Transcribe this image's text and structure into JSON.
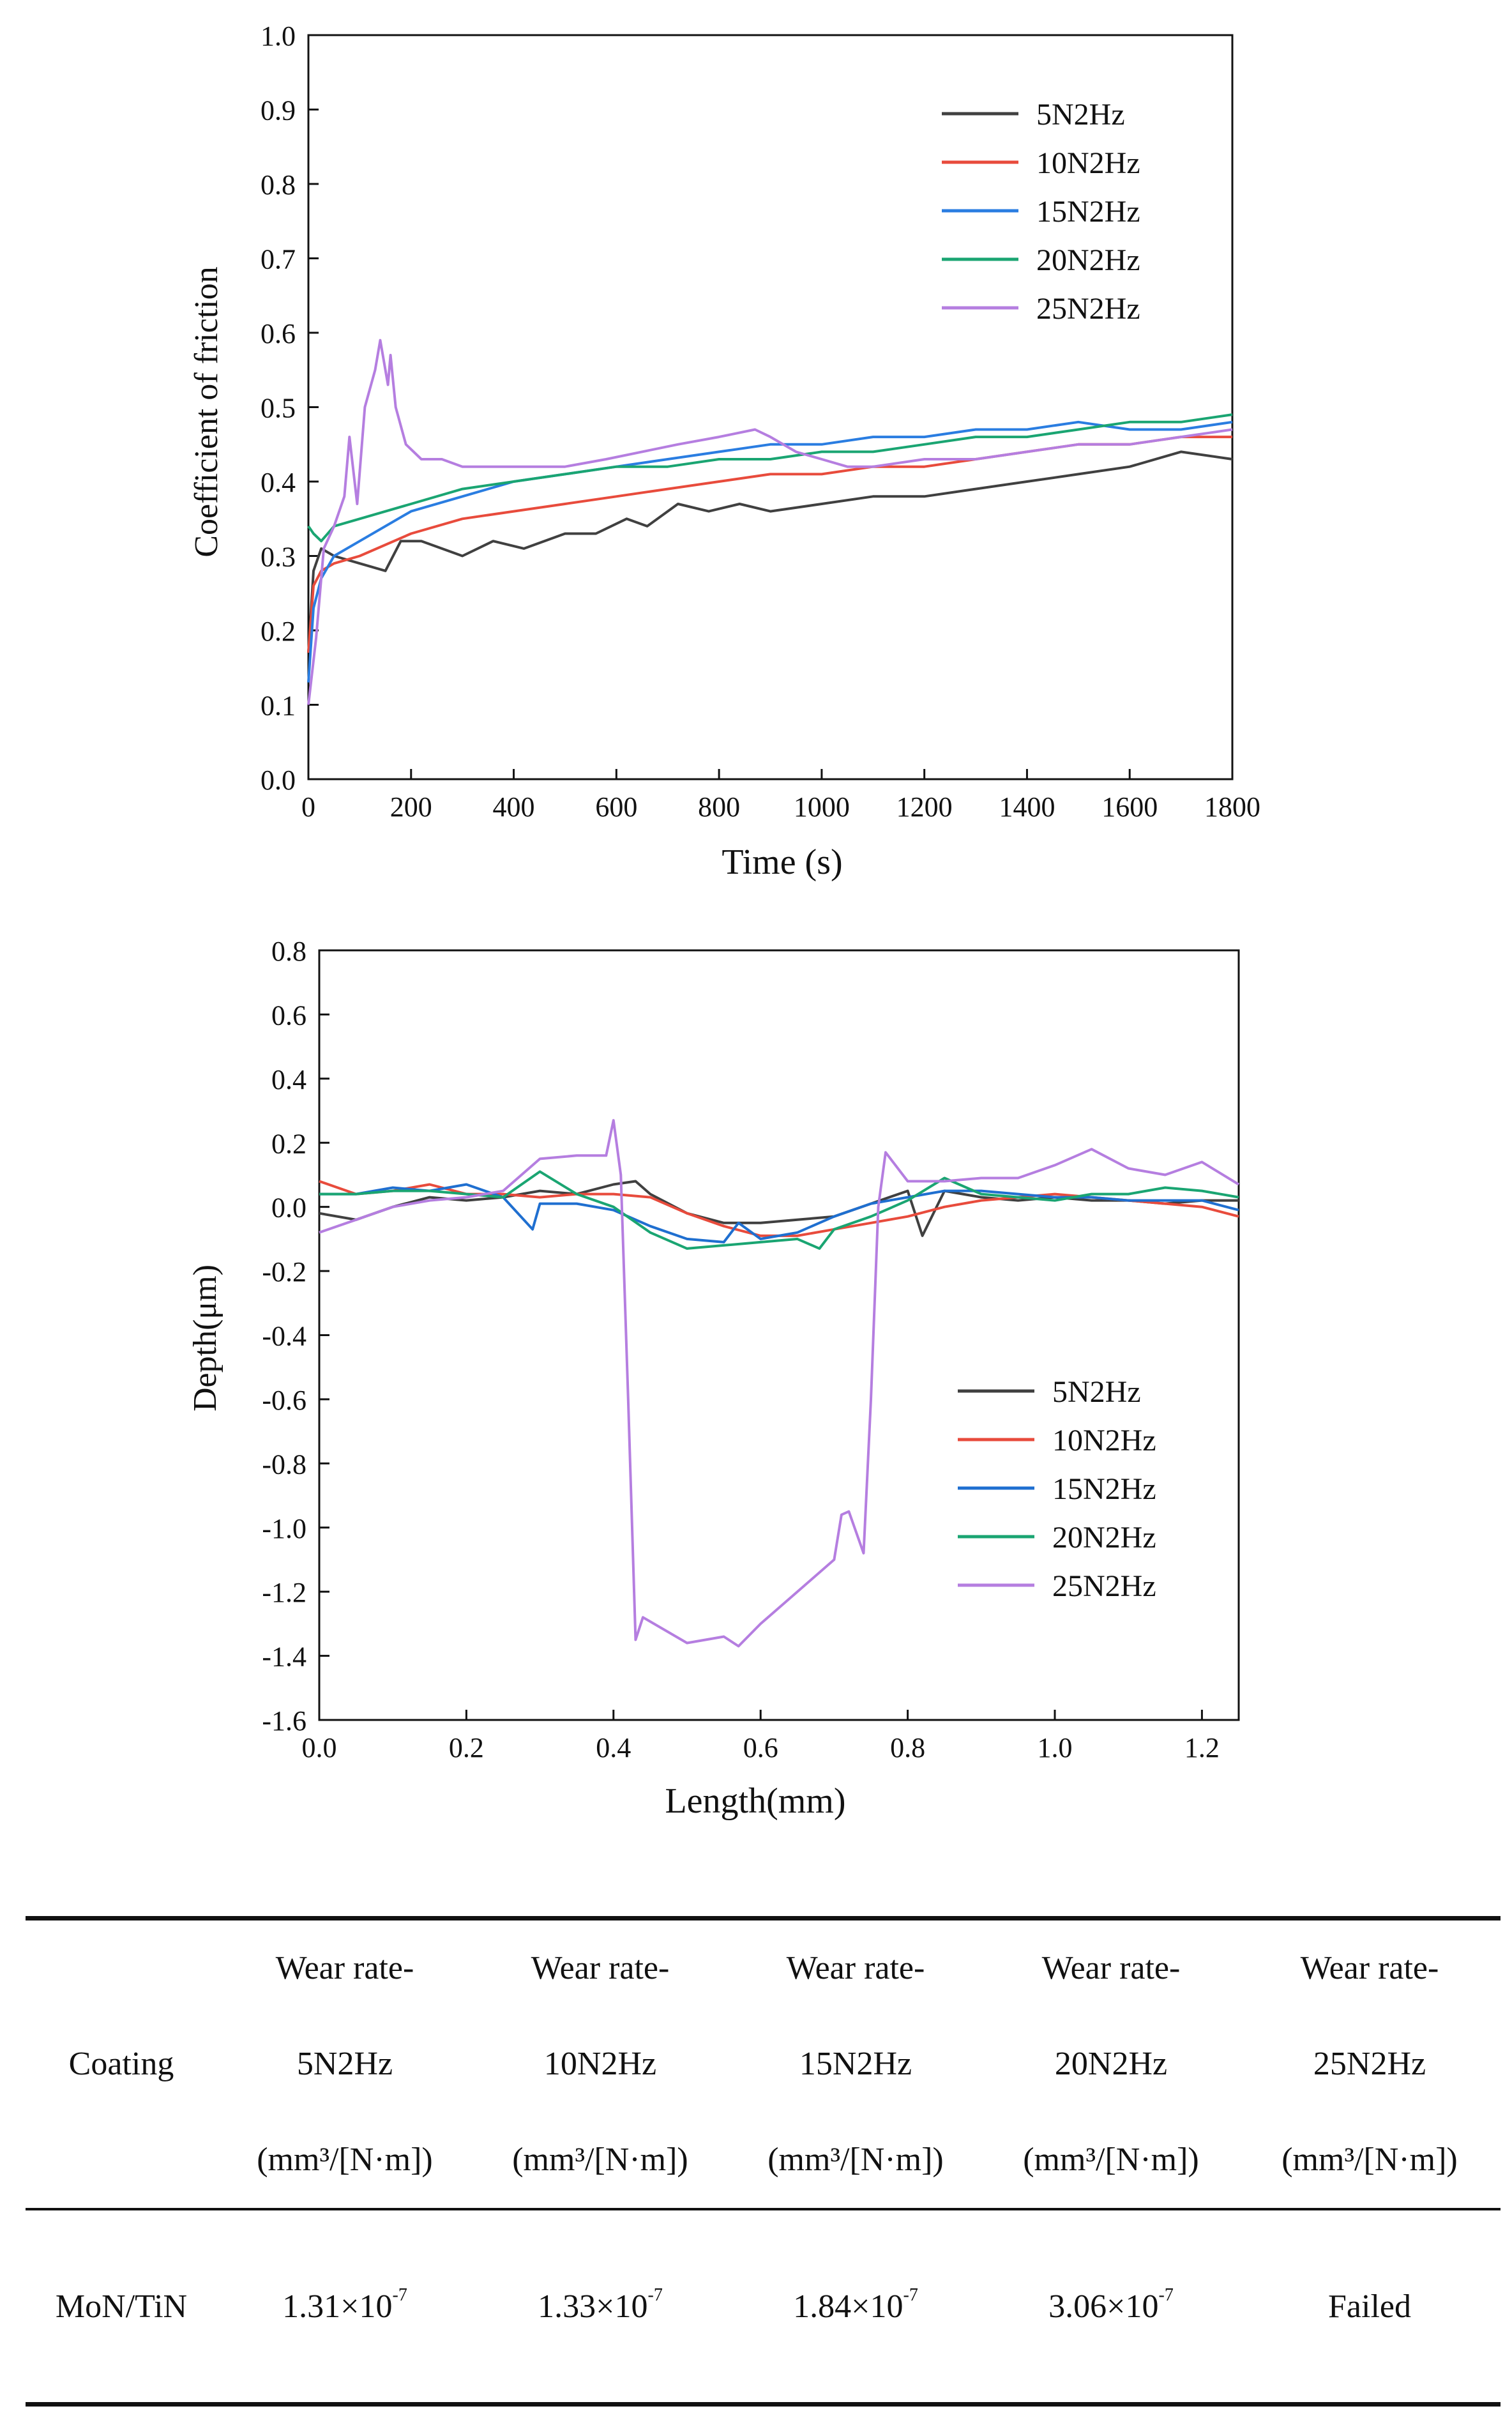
{
  "figure": {
    "friction_chart": {
      "type": "line",
      "xlabel": "Time (s)",
      "ylabel": "Coefficient of friction",
      "xlim": [
        0,
        1800
      ],
      "ylim": [
        0,
        1.0
      ],
      "xticks": [
        "0",
        "200",
        "400",
        "600",
        "800",
        "1000",
        "1200",
        "1400",
        "1600",
        "1800"
      ],
      "yticks": [
        "0.0",
        "0.1",
        "0.2",
        "0.3",
        "0.4",
        "0.5",
        "0.6",
        "0.7",
        "0.8",
        "0.9",
        "1.0"
      ],
      "legend_position": "top-right",
      "series": [
        {
          "name": "5N2Hz",
          "color": "#404040",
          "x": [
            0,
            10,
            25,
            50,
            100,
            150,
            180,
            220,
            300,
            360,
            420,
            500,
            560,
            620,
            660,
            720,
            780,
            840,
            900,
            1000,
            1100,
            1200,
            1300,
            1400,
            1500,
            1600,
            1700,
            1800
          ],
          "y": [
            0.17,
            0.28,
            0.31,
            0.3,
            0.29,
            0.28,
            0.32,
            0.32,
            0.3,
            0.32,
            0.31,
            0.33,
            0.33,
            0.35,
            0.34,
            0.37,
            0.36,
            0.37,
            0.36,
            0.37,
            0.38,
            0.38,
            0.39,
            0.4,
            0.41,
            0.42,
            0.44,
            0.43
          ]
        },
        {
          "name": "10N2Hz",
          "color": "#e84b3c",
          "x": [
            0,
            10,
            25,
            50,
            100,
            200,
            300,
            400,
            500,
            600,
            700,
            800,
            900,
            1000,
            1100,
            1200,
            1300,
            1400,
            1500,
            1600,
            1700,
            1800
          ],
          "y": [
            0.17,
            0.26,
            0.28,
            0.29,
            0.3,
            0.33,
            0.35,
            0.36,
            0.37,
            0.38,
            0.39,
            0.4,
            0.41,
            0.41,
            0.42,
            0.42,
            0.43,
            0.44,
            0.45,
            0.45,
            0.46,
            0.46
          ]
        },
        {
          "name": "15N2Hz",
          "color": "#2a7de1",
          "x": [
            0,
            10,
            25,
            50,
            100,
            200,
            300,
            400,
            500,
            600,
            700,
            800,
            900,
            1000,
            1100,
            1200,
            1300,
            1400,
            1500,
            1600,
            1700,
            1800
          ],
          "y": [
            0.13,
            0.23,
            0.27,
            0.3,
            0.32,
            0.36,
            0.38,
            0.4,
            0.41,
            0.42,
            0.43,
            0.44,
            0.45,
            0.45,
            0.46,
            0.46,
            0.47,
            0.47,
            0.48,
            0.47,
            0.47,
            0.48
          ]
        },
        {
          "name": "20N2Hz",
          "color": "#1aa572",
          "x": [
            0,
            10,
            25,
            50,
            100,
            200,
            300,
            400,
            500,
            600,
            700,
            800,
            900,
            1000,
            1100,
            1200,
            1300,
            1400,
            1500,
            1600,
            1700,
            1800
          ],
          "y": [
            0.34,
            0.33,
            0.32,
            0.34,
            0.35,
            0.37,
            0.39,
            0.4,
            0.41,
            0.42,
            0.42,
            0.43,
            0.43,
            0.44,
            0.44,
            0.45,
            0.46,
            0.46,
            0.47,
            0.48,
            0.48,
            0.49
          ]
        },
        {
          "name": "25N2Hz",
          "color": "#b57ee0",
          "x": [
            0,
            15,
            30,
            50,
            70,
            80,
            95,
            110,
            130,
            140,
            155,
            160,
            170,
            190,
            220,
            260,
            300,
            400,
            500,
            580,
            650,
            720,
            800,
            870,
            900,
            950,
            1000,
            1050,
            1100,
            1200,
            1300,
            1400,
            1500,
            1600,
            1700,
            1800
          ],
          "y": [
            0.1,
            0.19,
            0.31,
            0.34,
            0.38,
            0.46,
            0.37,
            0.5,
            0.55,
            0.59,
            0.53,
            0.57,
            0.5,
            0.45,
            0.43,
            0.43,
            0.42,
            0.42,
            0.42,
            0.43,
            0.44,
            0.45,
            0.46,
            0.47,
            0.46,
            0.44,
            0.43,
            0.42,
            0.42,
            0.43,
            0.43,
            0.44,
            0.45,
            0.45,
            0.46,
            0.47
          ]
        }
      ]
    },
    "depth_chart": {
      "type": "line",
      "xlabel": "Length(mm)",
      "ylabel": "Depth(μm)",
      "xlim": [
        0,
        1.25
      ],
      "ylim": [
        -1.6,
        0.8
      ],
      "xticks": [
        "0.0",
        "0.2",
        "0.4",
        "0.6",
        "0.8",
        "1.0",
        "1.2"
      ],
      "yticks": [
        "-1.6",
        "-1.4",
        "-1.2",
        "-1.0",
        "-0.8",
        "-0.6",
        "-0.4",
        "-0.2",
        "0.0",
        "0.2",
        "0.4",
        "0.6",
        "0.8"
      ],
      "legend_position": "lower-right",
      "series": [
        {
          "name": "5N2Hz",
          "color": "#404040",
          "x": [
            0,
            0.05,
            0.1,
            0.15,
            0.2,
            0.25,
            0.3,
            0.35,
            0.4,
            0.43,
            0.45,
            0.5,
            0.55,
            0.6,
            0.65,
            0.7,
            0.75,
            0.8,
            0.82,
            0.85,
            0.9,
            0.95,
            1.0,
            1.05,
            1.1,
            1.15,
            1.2,
            1.25
          ],
          "y": [
            -0.02,
            -0.04,
            0.0,
            0.03,
            0.02,
            0.03,
            0.05,
            0.04,
            0.07,
            0.08,
            0.04,
            -0.02,
            -0.05,
            -0.05,
            -0.04,
            -0.03,
            0.01,
            0.05,
            -0.09,
            0.05,
            0.03,
            0.02,
            0.03,
            0.02,
            0.02,
            0.01,
            0.02,
            0.02
          ]
        },
        {
          "name": "10N2Hz",
          "color": "#e84b3c",
          "x": [
            0,
            0.05,
            0.1,
            0.15,
            0.2,
            0.25,
            0.3,
            0.35,
            0.4,
            0.45,
            0.5,
            0.55,
            0.6,
            0.65,
            0.7,
            0.75,
            0.8,
            0.85,
            0.9,
            0.95,
            1.0,
            1.05,
            1.1,
            1.15,
            1.2,
            1.25
          ],
          "y": [
            0.08,
            0.04,
            0.05,
            0.07,
            0.04,
            0.04,
            0.03,
            0.04,
            0.04,
            0.03,
            -0.02,
            -0.06,
            -0.09,
            -0.09,
            -0.07,
            -0.05,
            -0.03,
            0.0,
            0.02,
            0.03,
            0.04,
            0.03,
            0.02,
            0.01,
            0.0,
            -0.03
          ]
        },
        {
          "name": "15N2Hz",
          "color": "#1f6fd0",
          "x": [
            0,
            0.05,
            0.1,
            0.15,
            0.2,
            0.25,
            0.29,
            0.3,
            0.35,
            0.4,
            0.45,
            0.5,
            0.55,
            0.57,
            0.6,
            0.65,
            0.7,
            0.75,
            0.8,
            0.85,
            0.9,
            0.95,
            1.0,
            1.05,
            1.1,
            1.15,
            1.2,
            1.25
          ],
          "y": [
            0.04,
            0.04,
            0.06,
            0.05,
            0.07,
            0.03,
            -0.07,
            0.01,
            0.01,
            -0.01,
            -0.06,
            -0.1,
            -0.11,
            -0.05,
            -0.1,
            -0.08,
            -0.03,
            0.01,
            0.03,
            0.05,
            0.05,
            0.04,
            0.03,
            0.03,
            0.02,
            0.02,
            0.02,
            -0.01
          ]
        },
        {
          "name": "20N2Hz",
          "color": "#1aa572",
          "x": [
            0,
            0.05,
            0.1,
            0.15,
            0.2,
            0.25,
            0.3,
            0.35,
            0.4,
            0.45,
            0.5,
            0.55,
            0.6,
            0.65,
            0.68,
            0.7,
            0.75,
            0.8,
            0.85,
            0.9,
            0.95,
            1.0,
            1.05,
            1.1,
            1.15,
            1.2,
            1.25
          ],
          "y": [
            0.04,
            0.04,
            0.05,
            0.05,
            0.04,
            0.03,
            0.11,
            0.04,
            0.0,
            -0.08,
            -0.13,
            -0.12,
            -0.11,
            -0.1,
            -0.13,
            -0.07,
            -0.03,
            0.02,
            0.09,
            0.04,
            0.03,
            0.02,
            0.04,
            0.04,
            0.06,
            0.05,
            0.03
          ]
        },
        {
          "name": "25N2Hz",
          "color": "#b57ee0",
          "x": [
            0,
            0.05,
            0.1,
            0.15,
            0.2,
            0.25,
            0.3,
            0.35,
            0.39,
            0.4,
            0.41,
            0.42,
            0.43,
            0.44,
            0.5,
            0.55,
            0.57,
            0.6,
            0.65,
            0.7,
            0.71,
            0.72,
            0.74,
            0.75,
            0.76,
            0.77,
            0.8,
            0.85,
            0.9,
            0.95,
            1.0,
            1.05,
            1.1,
            1.15,
            1.2,
            1.25
          ],
          "y": [
            -0.08,
            -0.04,
            0.0,
            0.02,
            0.03,
            0.05,
            0.15,
            0.16,
            0.16,
            0.27,
            0.1,
            -0.6,
            -1.35,
            -1.28,
            -1.36,
            -1.34,
            -1.37,
            -1.3,
            -1.2,
            -1.1,
            -0.96,
            -0.95,
            -1.08,
            -0.6,
            0.0,
            0.17,
            0.08,
            0.08,
            0.09,
            0.09,
            0.13,
            0.18,
            0.12,
            0.1,
            0.14,
            0.07
          ]
        }
      ]
    }
  },
  "table": {
    "header": {
      "coating": "Coating",
      "columns": [
        {
          "line1": "Wear rate-",
          "line2": "5N2Hz",
          "line3": "(mm³/[N·m])"
        },
        {
          "line1": "Wear rate-",
          "line2": "10N2Hz",
          "line3": "(mm³/[N·m])"
        },
        {
          "line1": "Wear rate-",
          "line2": "15N2Hz",
          "line3": "(mm³/[N·m])"
        },
        {
          "line1": "Wear rate-",
          "line2": "20N2Hz",
          "line3": "(mm³/[N·m])"
        },
        {
          "line1": "Wear rate-",
          "line2": "25N2Hz",
          "line3": "(mm³/[N·m])"
        }
      ]
    },
    "row": {
      "coating": "MoN/TiN",
      "values": [
        {
          "mantissa": "1.31×10",
          "exponent": "-7"
        },
        {
          "mantissa": "1.33×10",
          "exponent": "-7"
        },
        {
          "mantissa": "1.84×10",
          "exponent": "-7"
        },
        {
          "mantissa": "3.06×10",
          "exponent": "-7"
        },
        {
          "mantissa": "Failed",
          "exponent": ""
        }
      ]
    }
  }
}
